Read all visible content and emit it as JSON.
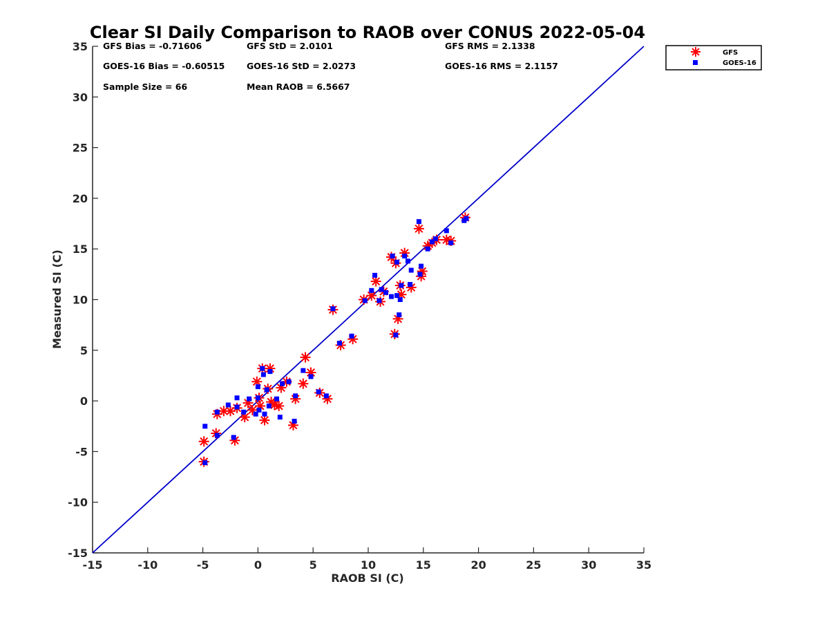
{
  "chart_data": {
    "type": "scatter",
    "title": "Clear SI Daily Comparison to RAOB over CONUS 2022-05-04",
    "xlabel": "RAOB SI (C)",
    "ylabel": "Measured SI (C)",
    "xlim": [
      -15,
      35
    ],
    "ylim": [
      -15,
      35
    ],
    "xticks": [
      -15,
      -10,
      -5,
      0,
      5,
      10,
      15,
      20,
      25,
      30,
      35
    ],
    "yticks": [
      -15,
      -10,
      -5,
      0,
      5,
      10,
      15,
      20,
      25,
      30,
      35
    ],
    "xtick_labels": [
      "-15",
      "-10",
      "-5",
      "0",
      "5",
      "10",
      "15",
      "20",
      "25",
      "30",
      "35"
    ],
    "ytick_labels": [
      "-15",
      "-10",
      "-5",
      "0",
      "5",
      "10",
      "15",
      "20",
      "25",
      "30",
      "35"
    ],
    "grid": false,
    "legend_position": "outside top-right",
    "reference_line": {
      "type": "one-to-one",
      "from": [
        -15,
        -15
      ],
      "to": [
        35,
        35
      ],
      "color": "#0000cc"
    },
    "stats": {
      "gfs_bias": "GFS Bias = -0.71606",
      "gfs_std": "GFS StD = 2.0101",
      "gfs_rms": "GFS RMS = 2.1338",
      "goes_bias": "GOES-16 Bias = -0.60515",
      "goes_std": "GOES-16 StD = 2.0273",
      "goes_rms": "GOES-16 RMS = 2.1157",
      "sample_size": "Sample Size = 66",
      "mean_raob": "Mean RAOB = 6.5667"
    },
    "series": [
      {
        "name": "GFS",
        "marker": "asterisk",
        "color": "#ff0000",
        "points": [
          [
            -4.9,
            -6.0
          ],
          [
            -4.9,
            -4.0
          ],
          [
            -3.8,
            -3.2
          ],
          [
            -3.7,
            -1.3
          ],
          [
            -3.1,
            -1.0
          ],
          [
            -2.5,
            -1.0
          ],
          [
            -2.1,
            -3.9
          ],
          [
            -1.9,
            -0.7
          ],
          [
            -1.2,
            -1.6
          ],
          [
            -0.9,
            -0.2
          ],
          [
            -0.5,
            -0.9
          ],
          [
            -0.1,
            1.9
          ],
          [
            0.1,
            0.3
          ],
          [
            0.2,
            -0.5
          ],
          [
            0.4,
            3.2
          ],
          [
            0.6,
            -1.9
          ],
          [
            0.9,
            1.2
          ],
          [
            1.1,
            3.2
          ],
          [
            1.2,
            -0.1
          ],
          [
            1.5,
            -0.4
          ],
          [
            1.9,
            -0.5
          ],
          [
            2.1,
            1.3
          ],
          [
            2.6,
            1.9
          ],
          [
            3.2,
            -2.4
          ],
          [
            3.4,
            0.2
          ],
          [
            4.1,
            1.7
          ],
          [
            4.3,
            4.3
          ],
          [
            4.8,
            2.8
          ],
          [
            5.6,
            0.8
          ],
          [
            6.3,
            0.2
          ],
          [
            6.8,
            9.0
          ],
          [
            7.5,
            5.5
          ],
          [
            8.6,
            6.1
          ],
          [
            9.6,
            10.0
          ],
          [
            10.3,
            10.4
          ],
          [
            10.7,
            11.8
          ],
          [
            11.1,
            9.8
          ],
          [
            11.4,
            10.8
          ],
          [
            12.1,
            14.2
          ],
          [
            12.4,
            6.6
          ],
          [
            12.5,
            13.6
          ],
          [
            12.7,
            8.1
          ],
          [
            12.9,
            11.4
          ],
          [
            13.0,
            10.5
          ],
          [
            13.3,
            14.6
          ],
          [
            13.9,
            11.2
          ],
          [
            14.6,
            17.0
          ],
          [
            14.8,
            12.3
          ],
          [
            14.9,
            12.8
          ],
          [
            15.4,
            15.3
          ],
          [
            15.8,
            15.6
          ],
          [
            16.2,
            15.9
          ],
          [
            17.1,
            15.9
          ],
          [
            17.5,
            15.8
          ],
          [
            18.8,
            18.1
          ]
        ]
      },
      {
        "name": "GOES-16",
        "marker": "square",
        "color": "#0000ff",
        "points": [
          [
            -4.8,
            -2.5
          ],
          [
            -4.8,
            -6.1
          ],
          [
            -3.7,
            -1.1
          ],
          [
            -3.7,
            -3.4
          ],
          [
            -2.7,
            -0.4
          ],
          [
            -2.2,
            -3.6
          ],
          [
            -1.9,
            0.3
          ],
          [
            -1.9,
            -0.6
          ],
          [
            -1.3,
            -1.1
          ],
          [
            -0.8,
            0.2
          ],
          [
            -0.2,
            -1.3
          ],
          [
            0.0,
            1.4
          ],
          [
            0.0,
            0.3
          ],
          [
            0.1,
            -0.9
          ],
          [
            0.4,
            3.2
          ],
          [
            0.5,
            2.6
          ],
          [
            0.6,
            -1.3
          ],
          [
            0.8,
            1.1
          ],
          [
            1.0,
            -0.5
          ],
          [
            1.1,
            2.9
          ],
          [
            1.7,
            0.2
          ],
          [
            2.0,
            -1.6
          ],
          [
            2.2,
            1.7
          ],
          [
            2.8,
            1.9
          ],
          [
            3.3,
            -2.0
          ],
          [
            3.4,
            0.5
          ],
          [
            4.1,
            3.0
          ],
          [
            4.8,
            2.4
          ],
          [
            5.5,
            0.9
          ],
          [
            6.2,
            0.5
          ],
          [
            6.8,
            9.1
          ],
          [
            7.4,
            5.7
          ],
          [
            8.5,
            6.4
          ],
          [
            9.7,
            9.9
          ],
          [
            10.3,
            10.9
          ],
          [
            10.6,
            12.4
          ],
          [
            11.0,
            9.9
          ],
          [
            11.2,
            11.0
          ],
          [
            11.6,
            10.7
          ],
          [
            12.1,
            10.3
          ],
          [
            12.2,
            14.3
          ],
          [
            12.5,
            6.5
          ],
          [
            12.6,
            10.4
          ],
          [
            12.6,
            13.7
          ],
          [
            12.8,
            8.5
          ],
          [
            12.9,
            10.0
          ],
          [
            13.0,
            11.4
          ],
          [
            13.3,
            14.3
          ],
          [
            13.6,
            13.8
          ],
          [
            13.8,
            11.5
          ],
          [
            13.9,
            12.9
          ],
          [
            14.6,
            17.7
          ],
          [
            14.7,
            12.5
          ],
          [
            14.8,
            13.3
          ],
          [
            15.4,
            15.0
          ],
          [
            15.8,
            15.7
          ],
          [
            16.1,
            16.0
          ],
          [
            17.1,
            16.8
          ],
          [
            17.5,
            15.6
          ],
          [
            18.7,
            17.8
          ],
          [
            18.9,
            18.0
          ]
        ]
      }
    ]
  }
}
